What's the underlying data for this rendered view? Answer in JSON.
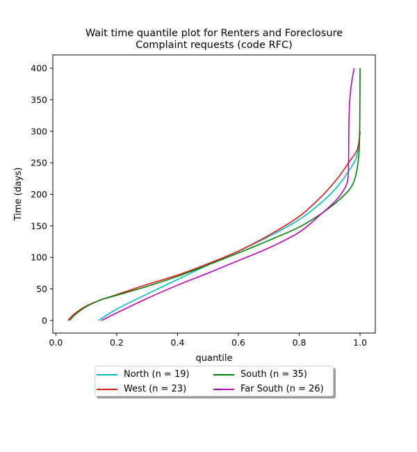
{
  "chart_data": {
    "type": "line",
    "title_lines": [
      "Wait time quantile plot for Renters and Foreclosure",
      "Complaint  requests (code RFC)"
    ],
    "xlabel": "quantile",
    "ylabel": "Time (days)",
    "xlim": [
      -0.01,
      1.05
    ],
    "ylim": [
      -20,
      421
    ],
    "xticks": [
      "0.0",
      "0.2",
      "0.4",
      "0.6",
      "0.8",
      "1.0"
    ],
    "yticks": [
      "0",
      "50",
      "100",
      "150",
      "200",
      "250",
      "300",
      "350",
      "400"
    ],
    "grid": false,
    "legend_position": "below",
    "series": [
      {
        "name": "North (n = 19)",
        "color": "#00bfbf",
        "points": [
          [
            0.14,
            0
          ],
          [
            0.2,
            18
          ],
          [
            0.3,
            42
          ],
          [
            0.4,
            65
          ],
          [
            0.5,
            88
          ],
          [
            0.6,
            110
          ],
          [
            0.7,
            133
          ],
          [
            0.8,
            160
          ],
          [
            0.88,
            190
          ],
          [
            0.93,
            215
          ],
          [
            0.96,
            235
          ],
          [
            0.985,
            255
          ],
          [
            0.995,
            275
          ],
          [
            0.999,
            300
          ]
        ]
      },
      {
        "name": "West (n = 23)",
        "color": "#e41a1c",
        "points": [
          [
            0.04,
            0
          ],
          [
            0.06,
            10
          ],
          [
            0.1,
            23
          ],
          [
            0.15,
            33
          ],
          [
            0.2,
            41
          ],
          [
            0.3,
            57
          ],
          [
            0.4,
            72
          ],
          [
            0.5,
            90
          ],
          [
            0.6,
            110
          ],
          [
            0.7,
            135
          ],
          [
            0.8,
            165
          ],
          [
            0.88,
            200
          ],
          [
            0.93,
            228
          ],
          [
            0.965,
            252
          ],
          [
            0.99,
            270
          ],
          [
            0.998,
            290
          ],
          [
            1.0,
            300
          ]
        ]
      },
      {
        "name": "South (n = 35)",
        "color": "#008000",
        "points": [
          [
            0.045,
            0
          ],
          [
            0.065,
            10
          ],
          [
            0.1,
            22
          ],
          [
            0.15,
            33
          ],
          [
            0.2,
            40
          ],
          [
            0.3,
            54
          ],
          [
            0.4,
            70
          ],
          [
            0.5,
            88
          ],
          [
            0.6,
            107
          ],
          [
            0.7,
            127
          ],
          [
            0.8,
            148
          ],
          [
            0.88,
            172
          ],
          [
            0.94,
            195
          ],
          [
            0.975,
            215
          ],
          [
            0.99,
            240
          ],
          [
            0.997,
            270
          ],
          [
            0.999,
            320
          ],
          [
            1.0,
            400
          ]
        ]
      },
      {
        "name": "Far South (n = 26)",
        "color": "#bf00bf",
        "points": [
          [
            0.15,
            0
          ],
          [
            0.2,
            12
          ],
          [
            0.3,
            35
          ],
          [
            0.4,
            56
          ],
          [
            0.5,
            75
          ],
          [
            0.6,
            95
          ],
          [
            0.7,
            115
          ],
          [
            0.8,
            140
          ],
          [
            0.87,
            168
          ],
          [
            0.92,
            190
          ],
          [
            0.95,
            210
          ],
          [
            0.96,
            225
          ],
          [
            0.962,
            250
          ],
          [
            0.963,
            300
          ],
          [
            0.965,
            340
          ],
          [
            0.97,
            370
          ],
          [
            0.98,
            400
          ]
        ]
      }
    ]
  }
}
